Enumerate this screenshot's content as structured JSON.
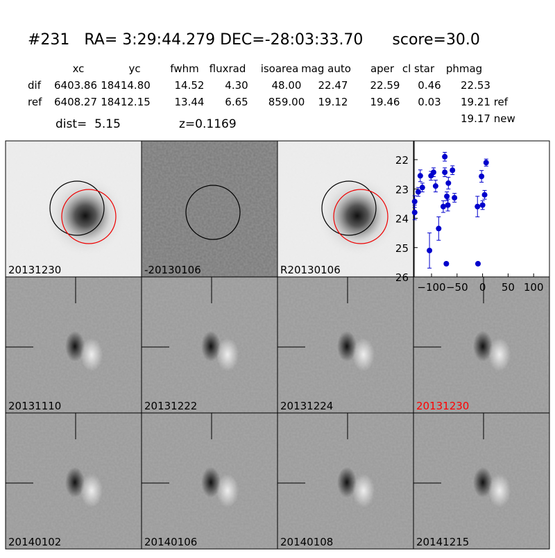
{
  "header": {
    "title": "#231   RA= 3:29:44.279 DEC=-28:03:33.70      score=30.0",
    "table": {
      "columns": [
        "xc",
        "yc",
        "fwhm",
        "fluxrad",
        "isoarea",
        "mag auto",
        "aper",
        "cl star",
        "phmag"
      ],
      "rows": [
        [
          "dif",
          "6403.86",
          "18414.80",
          "14.52",
          "4.30",
          "48.00",
          "22.47",
          "22.59",
          "0.46",
          "22.53"
        ],
        [
          "ref",
          "6408.27",
          "18412.15",
          "13.44",
          "6.65",
          "859.00",
          "19.12",
          "19.46",
          "0.03",
          "19.21 ref"
        ]
      ]
    },
    "new_phmag": "19.17 new",
    "dist": "dist=  5.15",
    "z": "z=0.1169"
  },
  "panels": [
    {
      "label": "20131230"
    },
    {
      "label": "-20130106"
    },
    {
      "label": "R20130106"
    },
    {
      "label": "20131110"
    },
    {
      "label": "20131222"
    },
    {
      "label": "20131224"
    },
    {
      "label": "20131230",
      "color": "#ff0000"
    },
    {
      "label": "20140102"
    },
    {
      "label": "20140106"
    },
    {
      "label": "20140108"
    },
    {
      "label": "20141215"
    }
  ],
  "chart_data": {
    "type": "scatter",
    "color": "#0000cc",
    "x": [
      -133,
      -133,
      -126,
      -122,
      -118,
      -104,
      -101,
      -96,
      -92,
      -86,
      -77,
      -74,
      -74,
      -71,
      -70,
      -68,
      -67,
      -59,
      -55,
      -10,
      -9,
      -2,
      0,
      4,
      7
    ],
    "values": [
      23.43,
      23.8,
      23.1,
      22.55,
      22.95,
      25.1,
      22.55,
      22.43,
      22.9,
      24.35,
      23.6,
      21.9,
      22.43,
      25.55,
      23.25,
      23.55,
      22.8,
      22.36,
      23.3,
      23.6,
      25.55,
      22.57,
      23.55,
      23.2,
      22.1
    ],
    "errors": [
      0.2,
      0.25,
      0.15,
      0.2,
      0.15,
      0.6,
      0.15,
      0.15,
      0.2,
      0.4,
      0.2,
      0.15,
      0.15,
      0.05,
      0.15,
      0.2,
      0.2,
      0.15,
      0.15,
      0.35,
      0.05,
      0.2,
      0.15,
      0.15,
      0.12
    ],
    "xlim": [
      -134,
      131
    ],
    "ylim": [
      26,
      21.36
    ],
    "xticks": [
      {
        "value": -100,
        "label": "−100"
      },
      {
        "value": -50,
        "label": "−50"
      },
      0,
      50,
      100
    ],
    "yticks": [
      22,
      23,
      24,
      25,
      26
    ]
  }
}
